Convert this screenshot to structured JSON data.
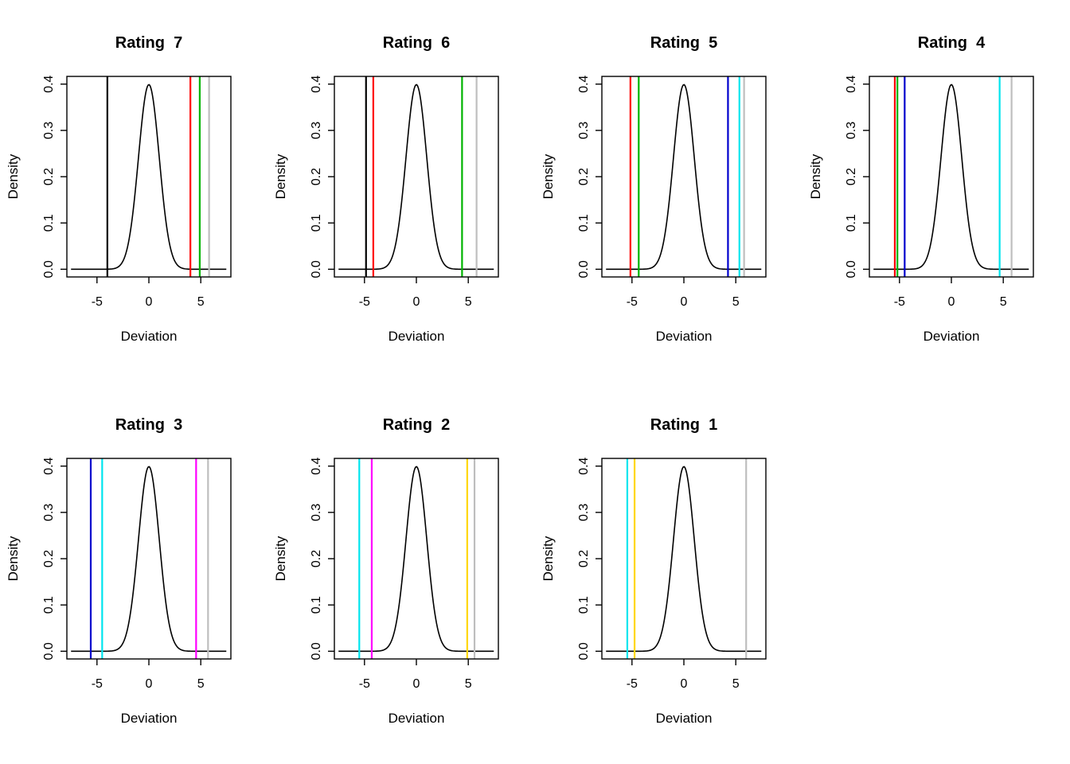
{
  "page": {
    "background": "#ffffff"
  },
  "chart_data": {
    "type": "line",
    "description": "Seven small-multiple density plots of a standard normal curve with colored vertical threshold lines, one panel per rating",
    "layout": {
      "rows": 2,
      "cols": 4,
      "grid_lines": false,
      "legend": "none",
      "box_around_plot": true
    },
    "shared": {
      "xlabel": "Deviation",
      "ylabel": "Density",
      "xlim": [
        -7.9,
        7.9
      ],
      "ylim": [
        0,
        0.4
      ],
      "xticks": [
        "-5",
        "0",
        "5"
      ],
      "yticks": [
        "0.0",
        "0.1",
        "0.2",
        "0.3",
        "0.4"
      ],
      "curve": {
        "kind": "normal_density",
        "mean": 0,
        "sd": 1,
        "peak": 0.399,
        "sample_range": [
          -7.5,
          7.5
        ],
        "color": "#000000"
      }
    },
    "panels": [
      {
        "title": "Rating  7",
        "vlines": [
          {
            "x": -4.0,
            "color": "#000000"
          },
          {
            "x": 4.0,
            "color": "#ff0000"
          },
          {
            "x": 4.9,
            "color": "#00b400"
          },
          {
            "x": 5.8,
            "color": "#bebebe"
          }
        ]
      },
      {
        "title": "Rating  6",
        "vlines": [
          {
            "x": -4.85,
            "color": "#000000"
          },
          {
            "x": -4.15,
            "color": "#ff0000"
          },
          {
            "x": 4.4,
            "color": "#00b400"
          },
          {
            "x": 5.8,
            "color": "#bebebe"
          }
        ]
      },
      {
        "title": "Rating  5",
        "vlines": [
          {
            "x": -5.15,
            "color": "#ff0000"
          },
          {
            "x": -4.35,
            "color": "#00b400"
          },
          {
            "x": 4.25,
            "color": "#0000cd"
          },
          {
            "x": 5.35,
            "color": "#00e5ee"
          },
          {
            "x": 5.8,
            "color": "#bebebe"
          }
        ]
      },
      {
        "title": "Rating  4",
        "vlines": [
          {
            "x": -5.45,
            "color": "#ff0000"
          },
          {
            "x": -5.2,
            "color": "#00b400"
          },
          {
            "x": -4.5,
            "color": "#0000cd"
          },
          {
            "x": 4.65,
            "color": "#00e5ee"
          },
          {
            "x": 5.8,
            "color": "#bebebe"
          }
        ]
      },
      {
        "title": "Rating  3",
        "vlines": [
          {
            "x": -5.6,
            "color": "#0000cd"
          },
          {
            "x": -4.5,
            "color": "#00e5ee"
          },
          {
            "x": 4.55,
            "color": "#ff00ff"
          },
          {
            "x": 5.7,
            "color": "#bebebe"
          }
        ]
      },
      {
        "title": "Rating  2",
        "vlines": [
          {
            "x": -5.5,
            "color": "#00e5ee"
          },
          {
            "x": -4.3,
            "color": "#ff00ff"
          },
          {
            "x": 4.9,
            "color": "#ffd700"
          },
          {
            "x": 5.6,
            "color": "#bebebe"
          }
        ]
      },
      {
        "title": "Rating  1",
        "vlines": [
          {
            "x": -5.45,
            "color": "#00e5ee"
          },
          {
            "x": -4.75,
            "color": "#ffd700"
          },
          {
            "x": 6.0,
            "color": "#bebebe"
          }
        ]
      }
    ]
  }
}
